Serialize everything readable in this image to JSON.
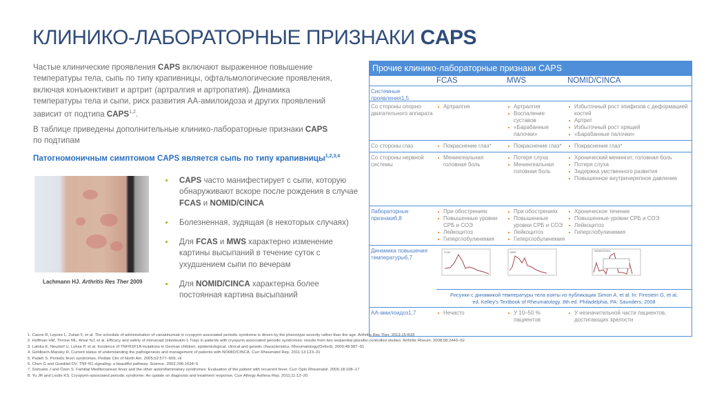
{
  "title": {
    "main": "КЛИНИКО-ЛАБОРАТОРНЫЕ ПРИЗНАКИ ",
    "bold": "CAPS"
  },
  "intro": {
    "p1_a": "Частые клинические проявления ",
    "caps": "CAPS",
    "p1_b": " включают выраженное повышение температуры тела, сыпь по типу крапивницы, офтальмологические проявления, включая конъюнктивит и артрит (артралгия и артропатия). Динамика температуры тела и сыпи, риск развития АА-амилоидоза и других проявлений зависит от подтипа ",
    "p1_sup": "1,2",
    "p1_end": ".",
    "p2_a": "В таблице приведены дополнительные клинико-лабораторные признаки ",
    "p2_b": " по подтипам",
    "hl_a": "Патогномоничным симптомом ",
    "hl_b": " является сыпь по типу крапивницы",
    "hl_sup": "1,2,3,4"
  },
  "photo_caption": {
    "a": "Lachmann HJ. ",
    "b": "Arthritis Res Ther",
    "c": " 2009"
  },
  "bullets": {
    "b1": {
      "a": "CAPS",
      "b": " часто манифестирует с сыпи, которую обнаруживают вскоре после рождения в случае ",
      "c": "FCAS",
      "d": " и ",
      "e": "NOMID/CINCA"
    },
    "b2": "Болезненная, зудящая (в некоторых случаях)",
    "b3": {
      "a": "Для ",
      "b": "FCAS",
      "c": " и ",
      "d": "MWS",
      "e": " характерно изменение картины высыпаний в течение суток с ухудшением сыпи по вечерам"
    },
    "b4": {
      "a": "Для ",
      "b": "NOMID/CINCA",
      "c": " характерна более постоянная картина высыпаний"
    }
  },
  "table": {
    "title": "Прочие клинико-лабораторные признаки CAPS",
    "cols": [
      "FCAS",
      "MWS",
      "NOMID/CINCA"
    ],
    "systemic": "Системные проявления1,5",
    "musculo": {
      "label": "Со стороны опорно-двигательного аппарата",
      "fcas": [
        "Артралгия"
      ],
      "mws": [
        "Артралгия",
        "Воспаление суставов",
        "«Барабанные палочки»"
      ],
      "nomid": [
        "Избыточный рост эпифизов с деформацией костей",
        "Артрит",
        "Избыточный рост хрящей",
        "«Барабанные палочки»"
      ]
    },
    "eyes": {
      "label": "Со стороны глаз",
      "fcas": [
        "Покраснение глаз*"
      ],
      "mws": [
        "Покраснение глаз*"
      ],
      "nomid": [
        "Покраснение глаз*"
      ]
    },
    "nerve": {
      "label": "Со стороны нервной системы",
      "fcas": [
        "Менингеальная головная боль"
      ],
      "mws": [
        "Потеря слуха",
        "Менингеальная головная боль"
      ],
      "nomid": [
        "Хронический менингит, головная боль",
        "Потеря слуха",
        "Задержка умственного развития",
        "Повышенное внутричерепное давление"
      ]
    },
    "lab": {
      "label": "Лабораторные признаки6,8",
      "fcas": [
        "При обострениях",
        "Повышенные уровни СРБ и СОЭ",
        "Лейкоцитоз",
        "Гиперглобулинемия"
      ],
      "mws": [
        "При обострениях",
        "Повышенные уровни СРБ и СОЭ",
        "Лейкоцитоз",
        "Гиперглобулинемия"
      ],
      "nomid": [
        "Хроническое течение",
        "Повышенные уровни СРБ и СОЭ",
        "Лейкоцитоз",
        "Гиперглобулинемия"
      ]
    },
    "temp": {
      "label": "Динамика повышения температуры6,7",
      "chart_labels": [
        "FCAS",
        "MWS",
        "NOMID/CINCA"
      ]
    },
    "caption": {
      "l1": "Рисунки с динамикой температуры тела взяты из публикации Simon A, et al. In: Firestein G, et al,",
      "l2": "ed. Kelley's Textbook of Rheumatology. 8th ed. Philadelphia, PA: Saunders; 2008"
    },
    "amyloid": {
      "label": "АА-амилоидоз1,7",
      "fcas": [
        "Нечасто"
      ],
      "mws": [
        "У 10–50 % пациентов"
      ],
      "nomid": [
        "У незначительной части пациентов, достигающих зрелости"
      ]
    }
  },
  "references": [
    "1.  Caorsi R, Lepore L, Zulian F, et al. The schedule of administration of canakinumab in cryopyrin associated periodic syndrome is driven by the phenotype severity rather than the age. Arthritis Res Ther. 2013;15:R33",
    "2.  Hoffman HM, Throne ML, Amar NJ, et al. Efficacy and safety of rilonacept (interleukin-1 Trap) in patients with cryopyrin-associated periodic syndromes: results from two sequential placebo-controlled studies. Arthritis Rheum. 2008;58:2443–52",
    "3.  Lainka E, Neudorf U, Lohse P, et al. Incidence of TNFRSF1A mutations in German children: epidemiological, clinical and genetic characteristics. Rheumatology(Oxford). 2009;48:987–91",
    "4.  Goldbach-Mansky R. Current status of understanding the pathogenesis and management of patients with NOMID/CINCA. Curr Rheumatol Rep. 2011;13:123–31",
    "5.  Padeh S. Periodic fever syndromes. Pediatr Clin of North Am. 2005;52:577–609, vii",
    "6.  Chen G and Goeddel DV. TNF-R1 signaling: a beautiful pathway. Science. 2002;296:1634–5",
    "7.  Samuels J and Özen S. Familial Mediterranean fever and the other autoinflammatory syndromes: Evaluation of the patient with recurrent fever. Curr Opin Rheumatol. 2006;18:108–17",
    "8.  Yu JR and Leslie KS. Cryopyrin-associated periodic syndrome: An update on diagnosis and treatment response. Curr Allergy Asthma Rep. 2011;11:12–20"
  ],
  "colors": {
    "title": "#2f4b78",
    "table_blue": "#4f8ed8",
    "bullet_green": "#9bc53d",
    "table_bullet": "#f08a30",
    "highlight": "#2a6fc0"
  }
}
